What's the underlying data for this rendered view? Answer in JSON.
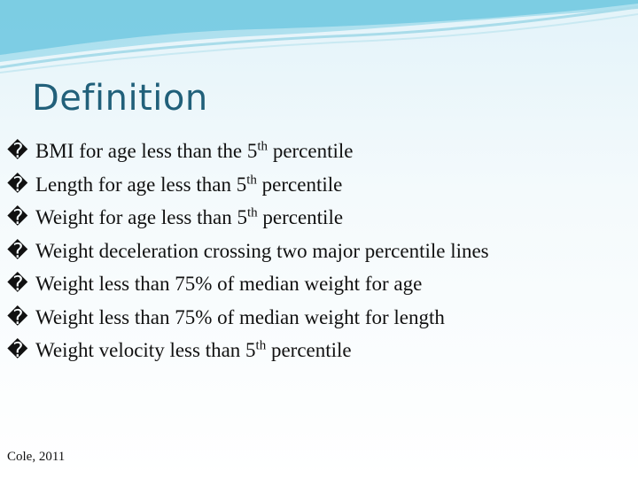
{
  "title": "Definition",
  "bullet": "�",
  "items": [
    {
      "before": "BMI for age less than the 5",
      "sup": "th",
      "after": " percentile"
    },
    {
      "before": "Length for age less than 5",
      "sup": "th",
      "after": " percentile"
    },
    {
      "before": "Weight for age less than 5",
      "sup": "th",
      "after": " percentile"
    },
    {
      "before": "Weight deceleration crossing two major percentile lines"
    },
    {
      "before": "Weight less than 75% of median weight for age"
    },
    {
      "before": "Weight less than 75% of median weight for length"
    },
    {
      "before": "Weight velocity less than 5",
      "sup": "th",
      "after": " percentile"
    }
  ],
  "footer": "Cole, 2011"
}
